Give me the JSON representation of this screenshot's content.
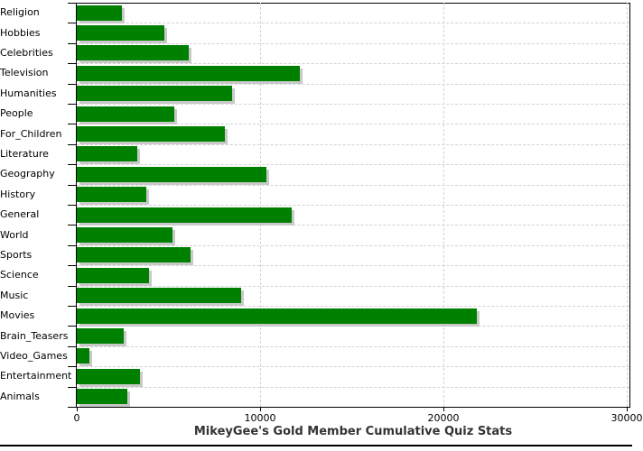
{
  "colors": {
    "bar_fill": "#008000",
    "bar_shadow": "#c9c9c9",
    "gridline": "#d2d2d2",
    "axis": "#000000",
    "title_text": "#333333",
    "background": "#ffffff"
  },
  "chart_data": {
    "type": "bar",
    "orientation": "horizontal",
    "title": "MikeyGee's Gold Member Cumulative Quiz Stats",
    "xlabel": "",
    "ylabel": "",
    "categories": [
      "Religion",
      "Hobbies",
      "Celebrities",
      "Television",
      "Humanities",
      "People",
      "For_Children",
      "Literature",
      "Geography",
      "History",
      "General",
      "World",
      "Sports",
      "Science",
      "Music",
      "Movies",
      "Brain_Teasers",
      "Video_Games",
      "Entertainment",
      "Animals"
    ],
    "values": [
      2450,
      4750,
      6100,
      12150,
      8450,
      5300,
      8050,
      3300,
      10350,
      3800,
      11700,
      5200,
      6200,
      3950,
      8950,
      21800,
      2550,
      700,
      3450,
      2750
    ],
    "xlim": [
      0,
      30000
    ],
    "xticks": [
      0,
      10000,
      20000,
      30000
    ],
    "xtick_labels": [
      "0",
      "10000",
      "20000",
      "30000"
    ],
    "grid": true,
    "legend_position": "none"
  }
}
